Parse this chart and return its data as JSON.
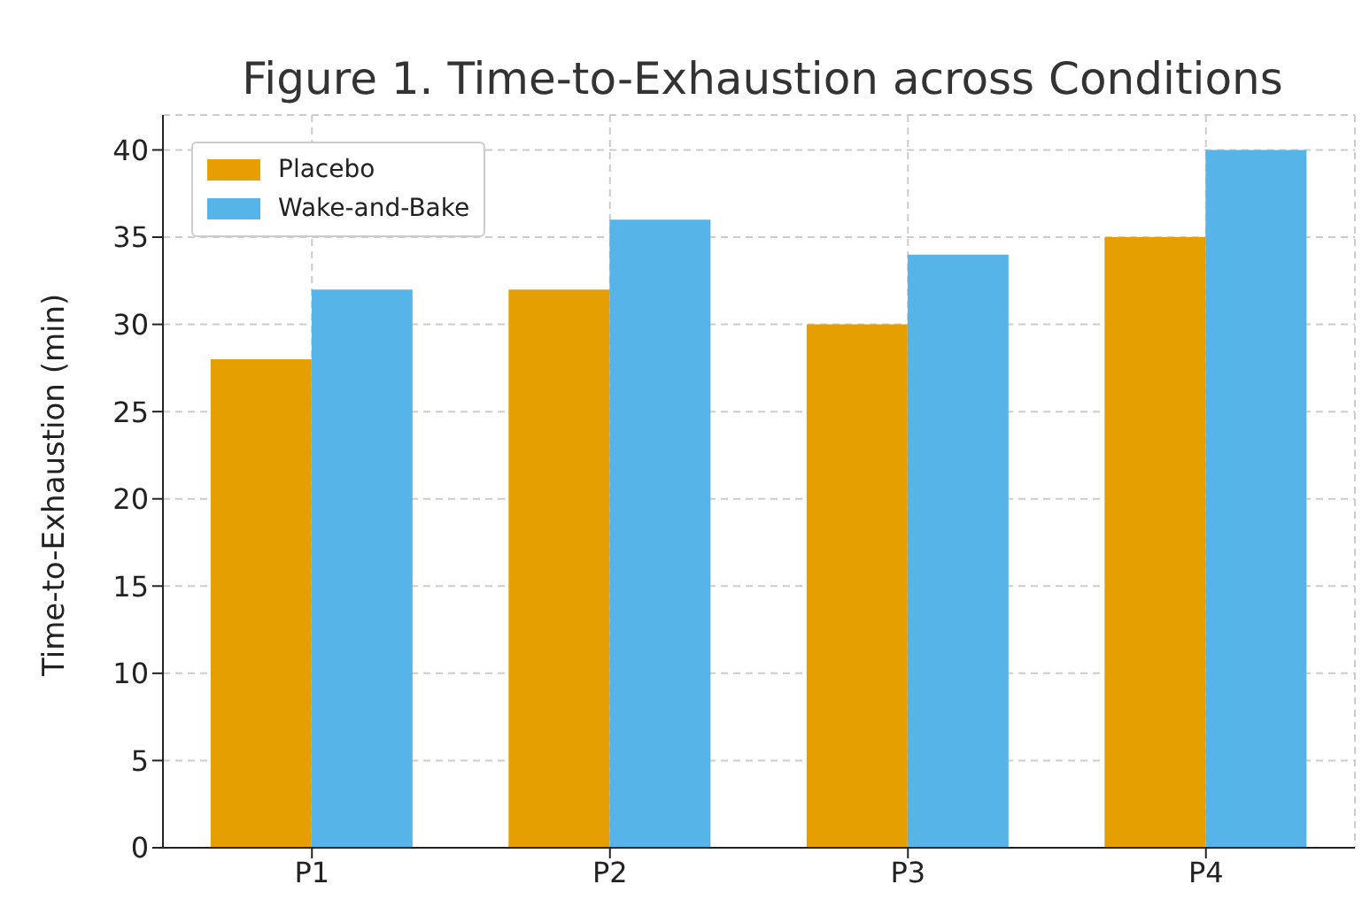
{
  "chart_data": {
    "type": "bar",
    "title": "Figure 1. Time-to-Exhaustion across Conditions",
    "ylabel": "Time-to-Exhaustion (min)",
    "categories": [
      "P1",
      "P2",
      "P3",
      "P4"
    ],
    "series": [
      {
        "name": "Placebo",
        "color": "#e69f00",
        "values": [
          28,
          32,
          30,
          35
        ]
      },
      {
        "name": "Wake-and-Bake",
        "color": "#56b4e9",
        "values": [
          32,
          36,
          34,
          40
        ]
      }
    ],
    "ylim": [
      0,
      42
    ],
    "yticks": [
      0,
      5,
      10,
      15,
      20,
      25,
      30,
      35,
      40
    ],
    "grid": true,
    "legend": "top left"
  }
}
